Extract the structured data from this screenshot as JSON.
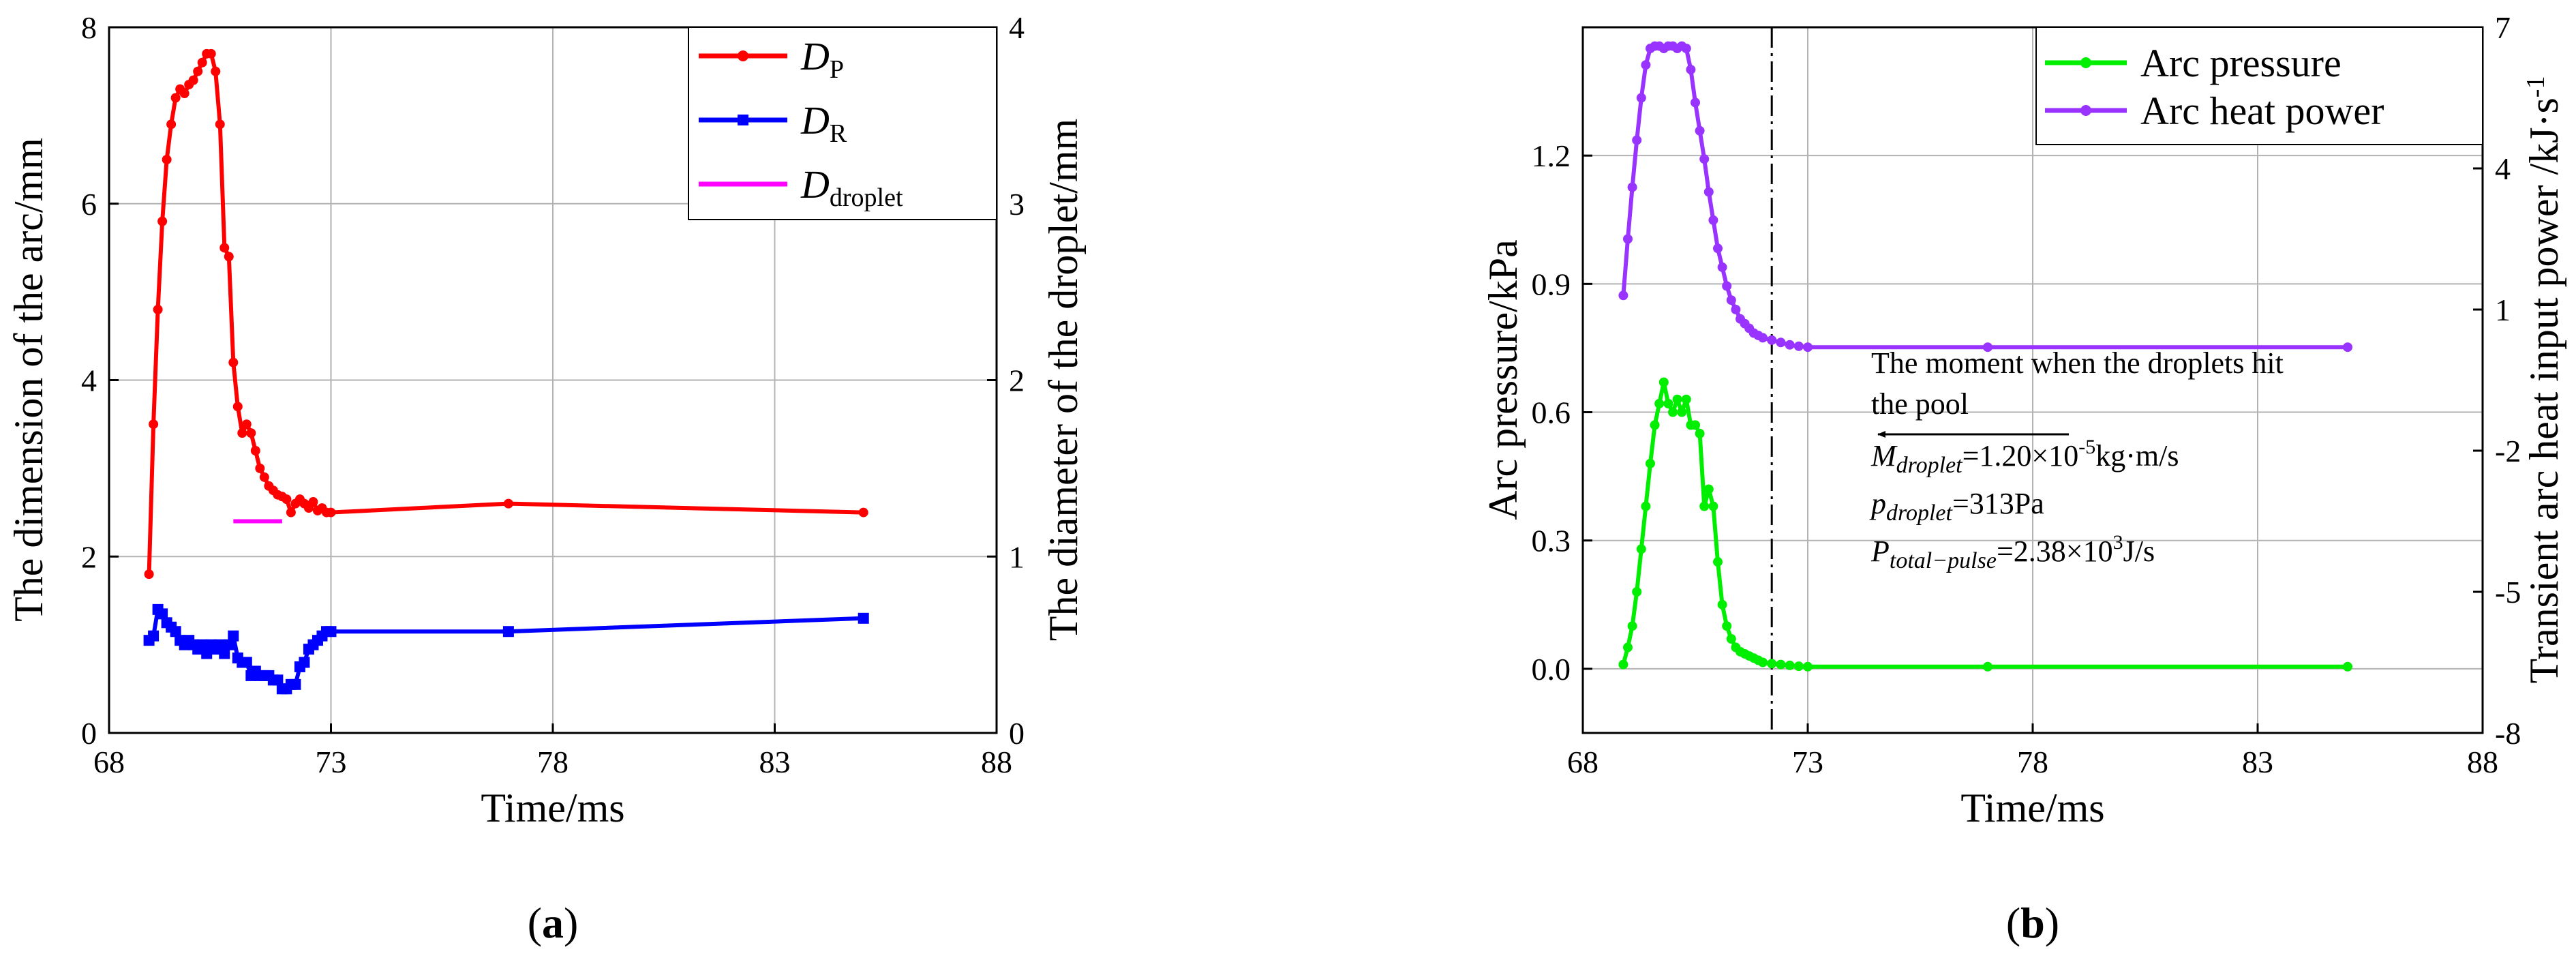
{
  "chart_data": [
    {
      "type": "line",
      "panel_label": "(a)",
      "xlabel": "Time/ms",
      "ylabel_left": "The dimension of the arc/mm",
      "ylabel_right": "The diameter of the droplet/mm",
      "xlim": [
        68,
        88
      ],
      "ylim_left": [
        0,
        8
      ],
      "ylim_right": [
        0,
        4
      ],
      "x_ticks": [
        "68",
        "73",
        "78",
        "83",
        "88"
      ],
      "y_ticks_left": [
        "0",
        "2",
        "4",
        "6",
        "8"
      ],
      "y_ticks_right": [
        "0",
        "1",
        "2",
        "3",
        "4"
      ],
      "grid": true,
      "legend_position": "top-right",
      "legend": [
        {
          "main": "D",
          "sub": "P",
          "color": "#ff0000"
        },
        {
          "main": "D",
          "sub": "R",
          "color": "#0000ff"
        },
        {
          "main": "D",
          "sub": "droplet",
          "color": "#ff00ff"
        }
      ],
      "series": [
        {
          "name": "DP",
          "axis": "left",
          "color": "#ff0000",
          "marker": "circle",
          "x": [
            68.9,
            69.0,
            69.1,
            69.2,
            69.3,
            69.4,
            69.5,
            69.6,
            69.7,
            69.8,
            69.9,
            70.0,
            70.1,
            70.2,
            70.3,
            70.4,
            70.5,
            70.6,
            70.7,
            70.8,
            70.9,
            71.0,
            71.1,
            71.2,
            71.3,
            71.4,
            71.5,
            71.6,
            71.7,
            71.8,
            71.9,
            72.0,
            72.1,
            72.2,
            72.3,
            72.4,
            72.5,
            72.6,
            72.7,
            72.8,
            72.9,
            73.0,
            77.0,
            85.0
          ],
          "y": [
            1.8,
            3.5,
            4.8,
            5.8,
            6.5,
            6.9,
            7.2,
            7.3,
            7.25,
            7.35,
            7.4,
            7.5,
            7.6,
            7.7,
            7.7,
            7.5,
            6.9,
            5.5,
            5.4,
            4.2,
            3.7,
            3.4,
            3.5,
            3.4,
            3.2,
            3.0,
            2.9,
            2.8,
            2.75,
            2.7,
            2.68,
            2.65,
            2.5,
            2.6,
            2.65,
            2.6,
            2.55,
            2.62,
            2.52,
            2.55,
            2.5,
            2.5,
            2.6,
            2.5
          ]
        },
        {
          "name": "DR",
          "axis": "left",
          "color": "#0000ff",
          "marker": "square",
          "x": [
            68.9,
            69.0,
            69.1,
            69.2,
            69.3,
            69.4,
            69.5,
            69.6,
            69.7,
            69.8,
            69.9,
            70.0,
            70.1,
            70.2,
            70.3,
            70.4,
            70.5,
            70.6,
            70.7,
            70.8,
            70.9,
            71.0,
            71.1,
            71.2,
            71.3,
            71.4,
            71.5,
            71.6,
            71.7,
            71.8,
            71.9,
            72.0,
            72.1,
            72.2,
            72.3,
            72.4,
            72.5,
            72.6,
            72.7,
            72.8,
            72.9,
            73.0,
            77.0,
            85.0
          ],
          "y": [
            1.05,
            1.1,
            1.4,
            1.35,
            1.25,
            1.2,
            1.15,
            1.05,
            1.0,
            1.05,
            1.0,
            0.95,
            1.0,
            0.9,
            1.0,
            0.95,
            1.0,
            0.9,
            1.0,
            1.1,
            0.85,
            0.8,
            0.8,
            0.65,
            0.7,
            0.65,
            0.65,
            0.65,
            0.6,
            0.6,
            0.5,
            0.5,
            0.55,
            0.55,
            0.75,
            0.8,
            0.95,
            1.0,
            1.05,
            1.1,
            1.15,
            1.15,
            1.15,
            1.3
          ]
        },
        {
          "name": "Ddroplet",
          "axis": "right",
          "color": "#ff00ff",
          "marker": "none",
          "x": [
            70.8,
            71.9
          ],
          "y": [
            1.2,
            1.2
          ]
        }
      ]
    },
    {
      "type": "line",
      "panel_label": "(b)",
      "xlabel": "Time/ms",
      "ylabel_left": "Arc pressure/kPa",
      "ylabel_right": "Transient arc heat input power /kJ·s",
      "ylabel_right_sup": "-1",
      "xlim": [
        68,
        88
      ],
      "ylim_left": [
        -0.15,
        1.5
      ],
      "ylim_right": [
        -8,
        7
      ],
      "x_ticks": [
        "68",
        "73",
        "78",
        "83",
        "88"
      ],
      "y_ticks_left": [
        "0.0",
        "0.3",
        "0.6",
        "0.9",
        "1.2"
      ],
      "y_ticks_right": [
        "-8",
        "-5",
        "-2",
        "1",
        "4",
        "7"
      ],
      "grid": true,
      "legend_position": "top-right",
      "legend": [
        {
          "label": "Arc pressure",
          "color": "#00ee00"
        },
        {
          "label": "Arc heat power",
          "color": "#9933ff"
        }
      ],
      "vline_x": 72.2,
      "annotations": {
        "arrow_text_line1": "The moment when the droplets hit",
        "arrow_text_line2": "the pool",
        "m_symbol": "M",
        "m_sub": "droplet",
        "m_value": "=1.20×10",
        "m_exp": "-5",
        "m_unit": "kg·m/s",
        "p_symbol": "p",
        "p_sub": "droplet",
        "p_value": "=313Pa",
        "P_symbol": "P",
        "P_sub": "total−pulse",
        "P_value": "=2.38×10",
        "P_exp": "3",
        "P_unit": "J/s"
      },
      "series": [
        {
          "name": "Arc pressure",
          "axis": "left",
          "color": "#00ee00",
          "marker": "circle",
          "x": [
            68.9,
            69.0,
            69.1,
            69.2,
            69.3,
            69.4,
            69.5,
            69.6,
            69.7,
            69.8,
            69.9,
            70.0,
            70.1,
            70.2,
            70.3,
            70.4,
            70.5,
            70.6,
            70.7,
            70.8,
            70.9,
            71.0,
            71.1,
            71.2,
            71.3,
            71.4,
            71.5,
            71.6,
            71.7,
            71.8,
            71.9,
            72.0,
            72.2,
            72.4,
            72.6,
            72.8,
            73.0,
            77.0,
            85.0
          ],
          "y": [
            0.01,
            0.05,
            0.1,
            0.18,
            0.28,
            0.38,
            0.48,
            0.57,
            0.62,
            0.67,
            0.62,
            0.6,
            0.63,
            0.6,
            0.63,
            0.57,
            0.57,
            0.55,
            0.38,
            0.42,
            0.38,
            0.25,
            0.15,
            0.1,
            0.07,
            0.05,
            0.04,
            0.035,
            0.03,
            0.025,
            0.02,
            0.015,
            0.012,
            0.01,
            0.008,
            0.006,
            0.005,
            0.005,
            0.005
          ]
        },
        {
          "name": "Arc heat power",
          "axis": "right",
          "color": "#9933ff",
          "marker": "circle",
          "x": [
            68.9,
            69.0,
            69.1,
            69.2,
            69.3,
            69.4,
            69.5,
            69.6,
            69.7,
            69.8,
            69.9,
            70.0,
            70.1,
            70.2,
            70.3,
            70.4,
            70.5,
            70.6,
            70.7,
            70.8,
            70.9,
            71.0,
            71.1,
            71.2,
            71.3,
            71.4,
            71.5,
            71.6,
            71.7,
            71.8,
            71.9,
            72.0,
            72.2,
            72.4,
            72.6,
            72.8,
            73.0,
            77.0,
            85.0
          ],
          "y": [
            1.3,
            2.5,
            3.6,
            4.6,
            5.5,
            6.2,
            6.55,
            6.6,
            6.6,
            6.55,
            6.6,
            6.6,
            6.55,
            6.6,
            6.55,
            6.1,
            5.4,
            4.8,
            4.2,
            3.5,
            2.9,
            2.3,
            1.9,
            1.5,
            1.2,
            1.0,
            0.8,
            0.7,
            0.6,
            0.5,
            0.45,
            0.4,
            0.35,
            0.3,
            0.25,
            0.22,
            0.2,
            0.2,
            0.2
          ]
        }
      ]
    }
  ]
}
